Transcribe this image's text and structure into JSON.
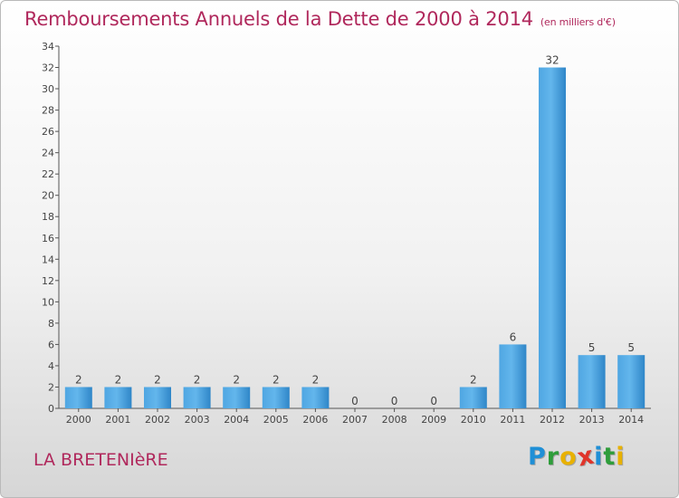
{
  "header": {
    "title": "Remboursements Annuels de la Dette de 2000 à 2014",
    "unit": "(en milliers d'€)"
  },
  "commune": "LA BRETENIèRE",
  "logo": {
    "letters": [
      "P",
      "r",
      "o",
      "x",
      "i",
      "t",
      "i"
    ],
    "colors": [
      "#1f8fd6",
      "#2e9d3a",
      "#e8b100",
      "#e0342a",
      "#1f8fd6",
      "#2e9d3a",
      "#e8b100"
    ]
  },
  "colors": {
    "bar_light": "#5aaee6",
    "bar_dark": "#2a7fc0",
    "text": "#b0285c"
  },
  "chart_data": {
    "type": "bar",
    "title": "Remboursements Annuels de la Dette de 2000 à 2014",
    "ylabel": "en milliers d'€",
    "xlabel": "",
    "categories": [
      "2000",
      "2001",
      "2002",
      "2003",
      "2004",
      "2005",
      "2006",
      "2007",
      "2008",
      "2009",
      "2010",
      "2011",
      "2012",
      "2013",
      "2014"
    ],
    "values": [
      2,
      2,
      2,
      2,
      2,
      2,
      2,
      0,
      0,
      0,
      2,
      6,
      32,
      5,
      5
    ],
    "ylim": [
      0,
      34
    ],
    "yticks": [
      0,
      2,
      4,
      6,
      8,
      10,
      12,
      14,
      16,
      18,
      20,
      22,
      24,
      26,
      28,
      30,
      32,
      34
    ],
    "grid": false,
    "legend": "none"
  }
}
